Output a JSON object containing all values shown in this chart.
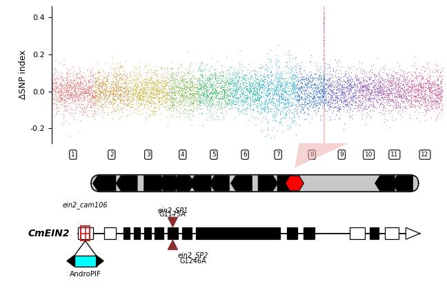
{
  "chr_colors_list": [
    "#e87070",
    "#d49030",
    "#c8b030",
    "#7ab840",
    "#30b860",
    "#20b8a8",
    "#20a8d0",
    "#2870d8",
    "#6850c8",
    "#9050b8",
    "#b050a0",
    "#d05090"
  ],
  "highlight_color": "#f0b0b0",
  "highlight_alpha": 0.5,
  "ylabel": "ΔSNP index",
  "ylim": [
    -0.28,
    0.46
  ],
  "yticks": [
    -0.2,
    0.0,
    0.2,
    0.4
  ],
  "chr_labels": [
    "1",
    "2",
    "3",
    "4",
    "5",
    "6",
    "7",
    "8",
    "9",
    "10",
    "11",
    "12"
  ],
  "background_color": "#ffffff",
  "sp_arrow_color": "#8b3030",
  "andropif_fill": "#00ffff",
  "ein2_cam106_color": "#cc2222"
}
